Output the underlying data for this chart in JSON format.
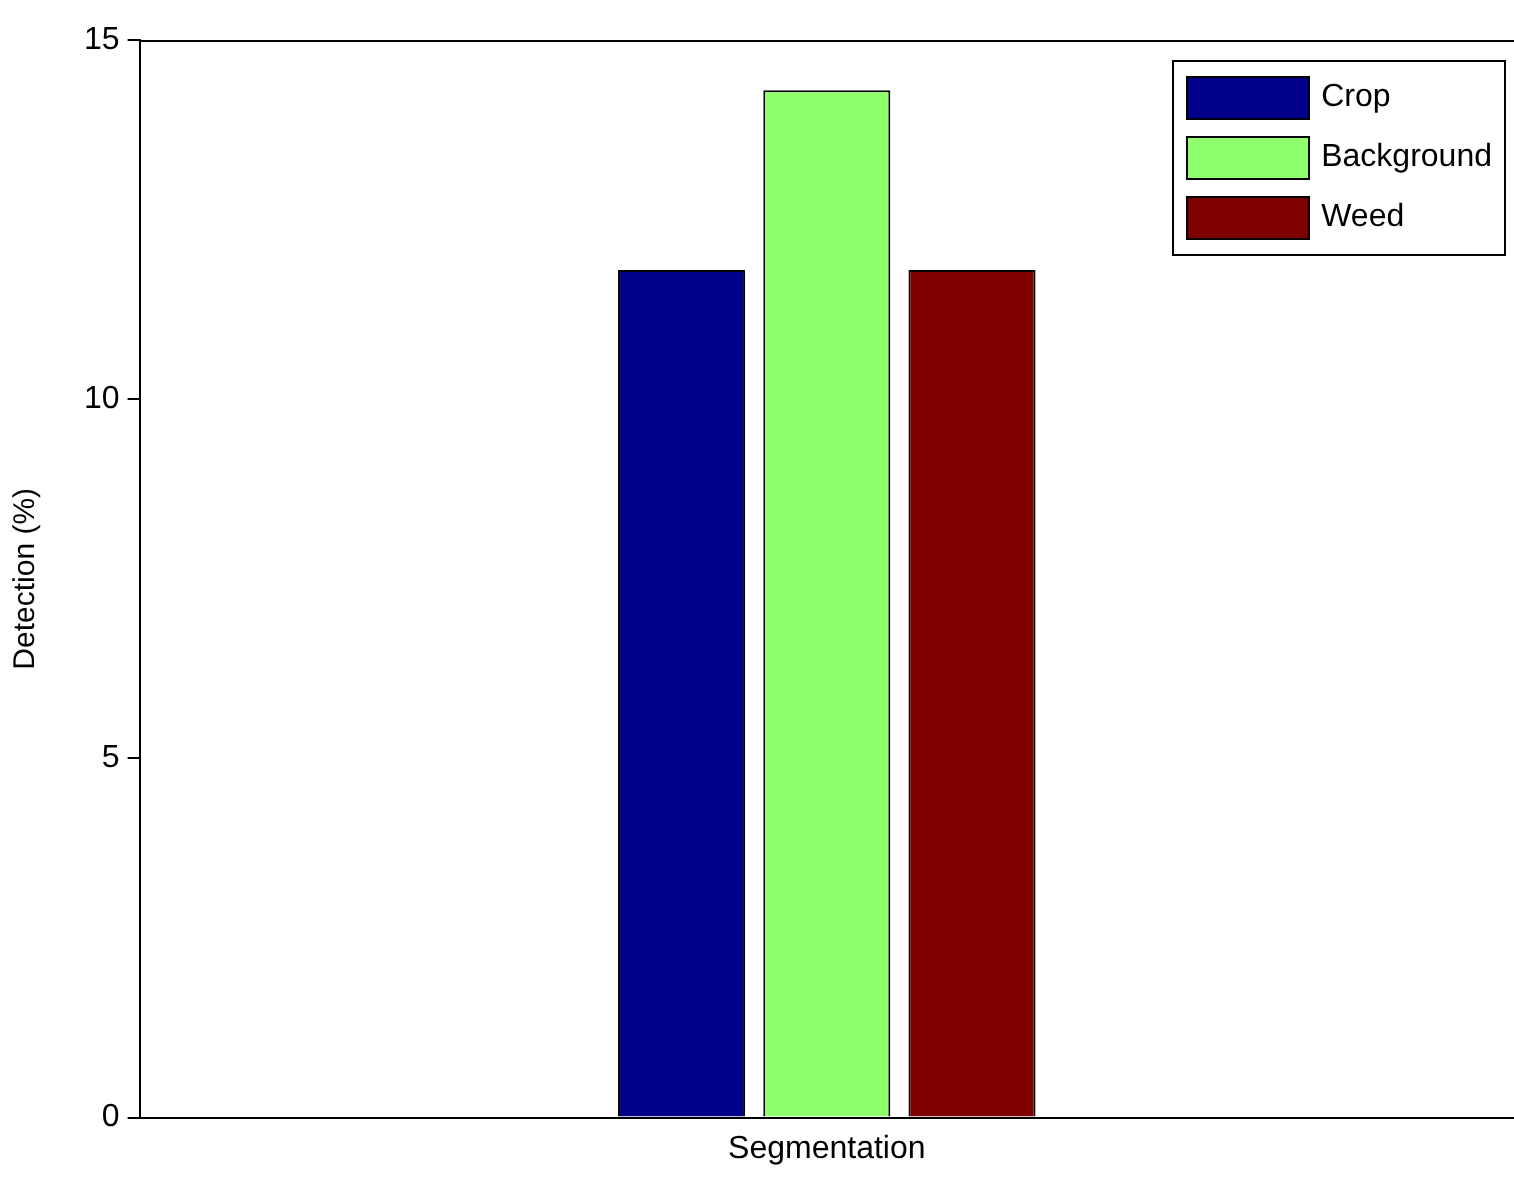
{
  "chart_data": {
    "type": "bar",
    "ylabel": "Detection (%)",
    "categories": [
      "Segmentation"
    ],
    "series": [
      {
        "name": "Crop",
        "color": "#00008b",
        "values": [
          11.8
        ]
      },
      {
        "name": "Background",
        "color": "#90ff6e",
        "values": [
          14.3
        ]
      },
      {
        "name": "Weed",
        "color": "#800000",
        "values": [
          11.8
        ]
      }
    ],
    "ylim": [
      0,
      15
    ],
    "yticks": [
      0,
      5,
      10,
      15
    ],
    "grid": false,
    "legend": "top right"
  }
}
